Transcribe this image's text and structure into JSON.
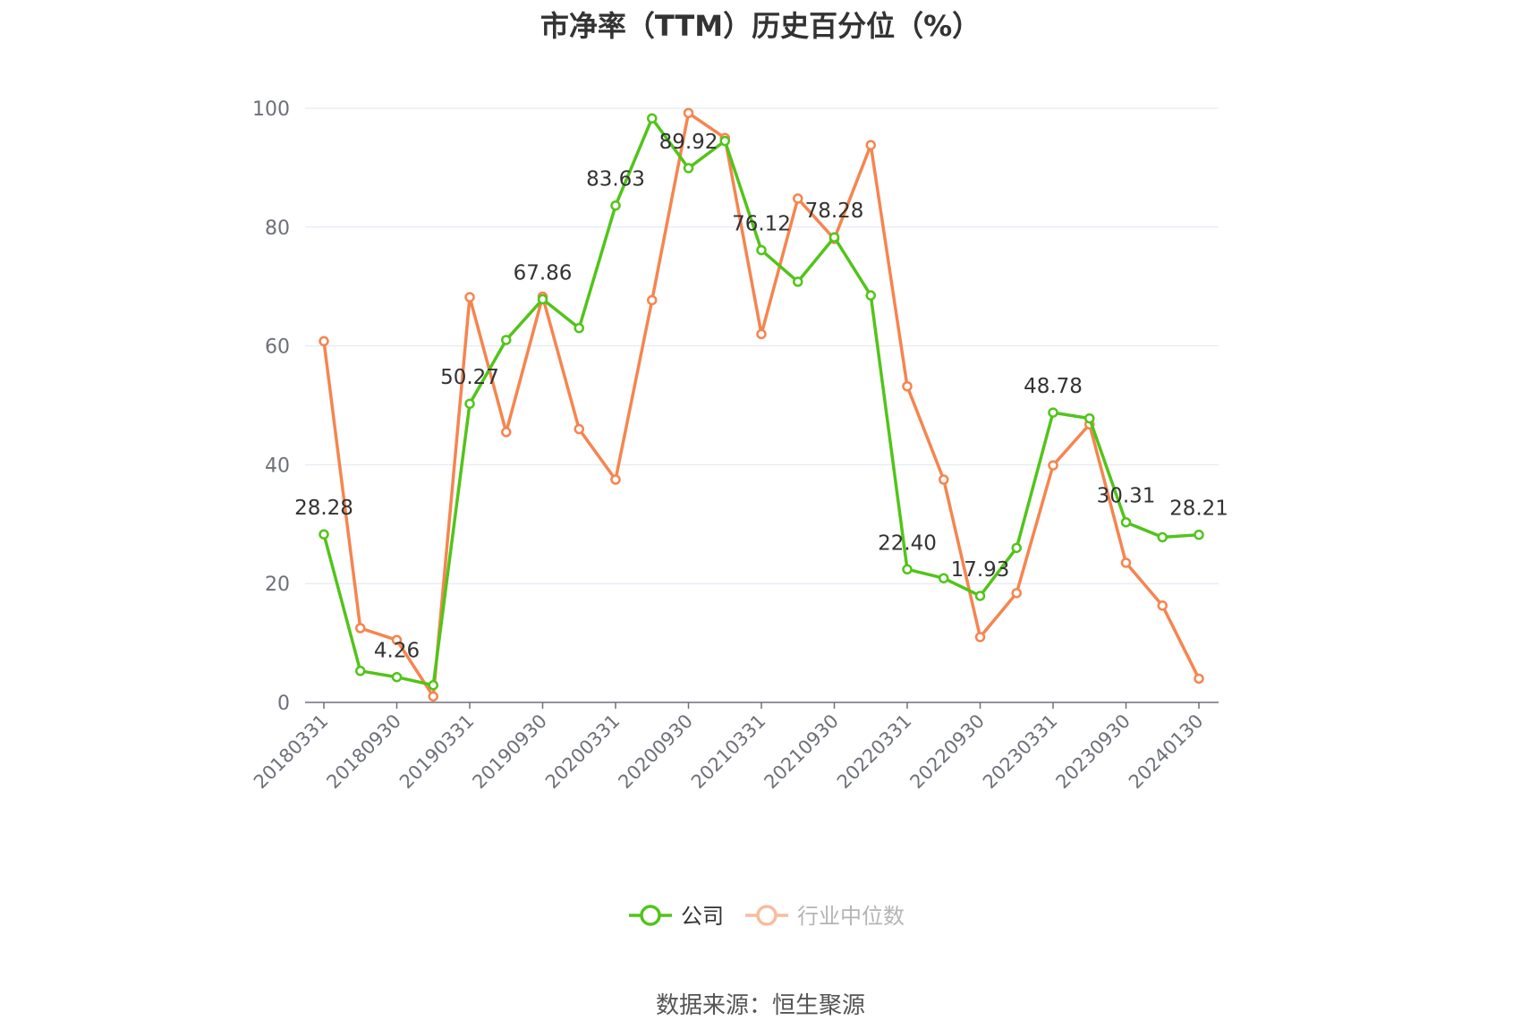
{
  "chart_data": {
    "type": "line",
    "title": "市净率（TTM）历史百分位（%）",
    "source": "数据来源：恒生聚源",
    "ylim": [
      0,
      100
    ],
    "y_ticks": [
      "0",
      "20",
      "40",
      "60",
      "80",
      "100"
    ],
    "x_tick_labels": [
      "20180331",
      "20180930",
      "20190331",
      "20190930",
      "20200331",
      "20200930",
      "20210331",
      "20210930",
      "20220331",
      "20220930",
      "20230331",
      "20230930",
      "20240130"
    ],
    "grid": true,
    "legend_position": "bottom-center",
    "x": [
      "20180331",
      "20180630",
      "20180930",
      "20181231",
      "20190331",
      "20190630",
      "20190930",
      "20191231",
      "20200331",
      "20200630",
      "20200930",
      "20201231",
      "20210331",
      "20210630",
      "20210930",
      "20211231",
      "20220331",
      "20220630",
      "20220930",
      "20221231",
      "20230331",
      "20230630",
      "20230930",
      "20231231",
      "20240130"
    ],
    "series": [
      {
        "name": "公司",
        "color": "#52c41a",
        "values": [
          28.28,
          5.3,
          4.26,
          2.9,
          50.27,
          61.0,
          67.86,
          63.0,
          83.63,
          98.3,
          89.92,
          94.5,
          76.12,
          70.8,
          78.28,
          68.5,
          22.4,
          20.9,
          17.93,
          26.0,
          48.78,
          47.8,
          30.31,
          27.8,
          28.21
        ],
        "labels": {
          "0": "28.28",
          "2": "4.26",
          "4": "50.27",
          "6": "67.86",
          "8": "83.63",
          "10": "89.92",
          "12": "76.12",
          "14": "78.28",
          "16": "22.40",
          "18": "17.93",
          "20": "48.78",
          "22": "30.31",
          "24": "28.21"
        }
      },
      {
        "name": "行业中位数",
        "color": "#f5854f",
        "values": [
          60.8,
          12.5,
          10.5,
          1.0,
          68.2,
          45.5,
          68.3,
          46.0,
          37.5,
          67.7,
          99.2,
          95.0,
          62.0,
          84.8,
          78.0,
          93.8,
          53.2,
          37.5,
          11.0,
          18.4,
          39.9,
          46.8,
          23.5,
          16.3,
          4.0
        ]
      }
    ]
  }
}
